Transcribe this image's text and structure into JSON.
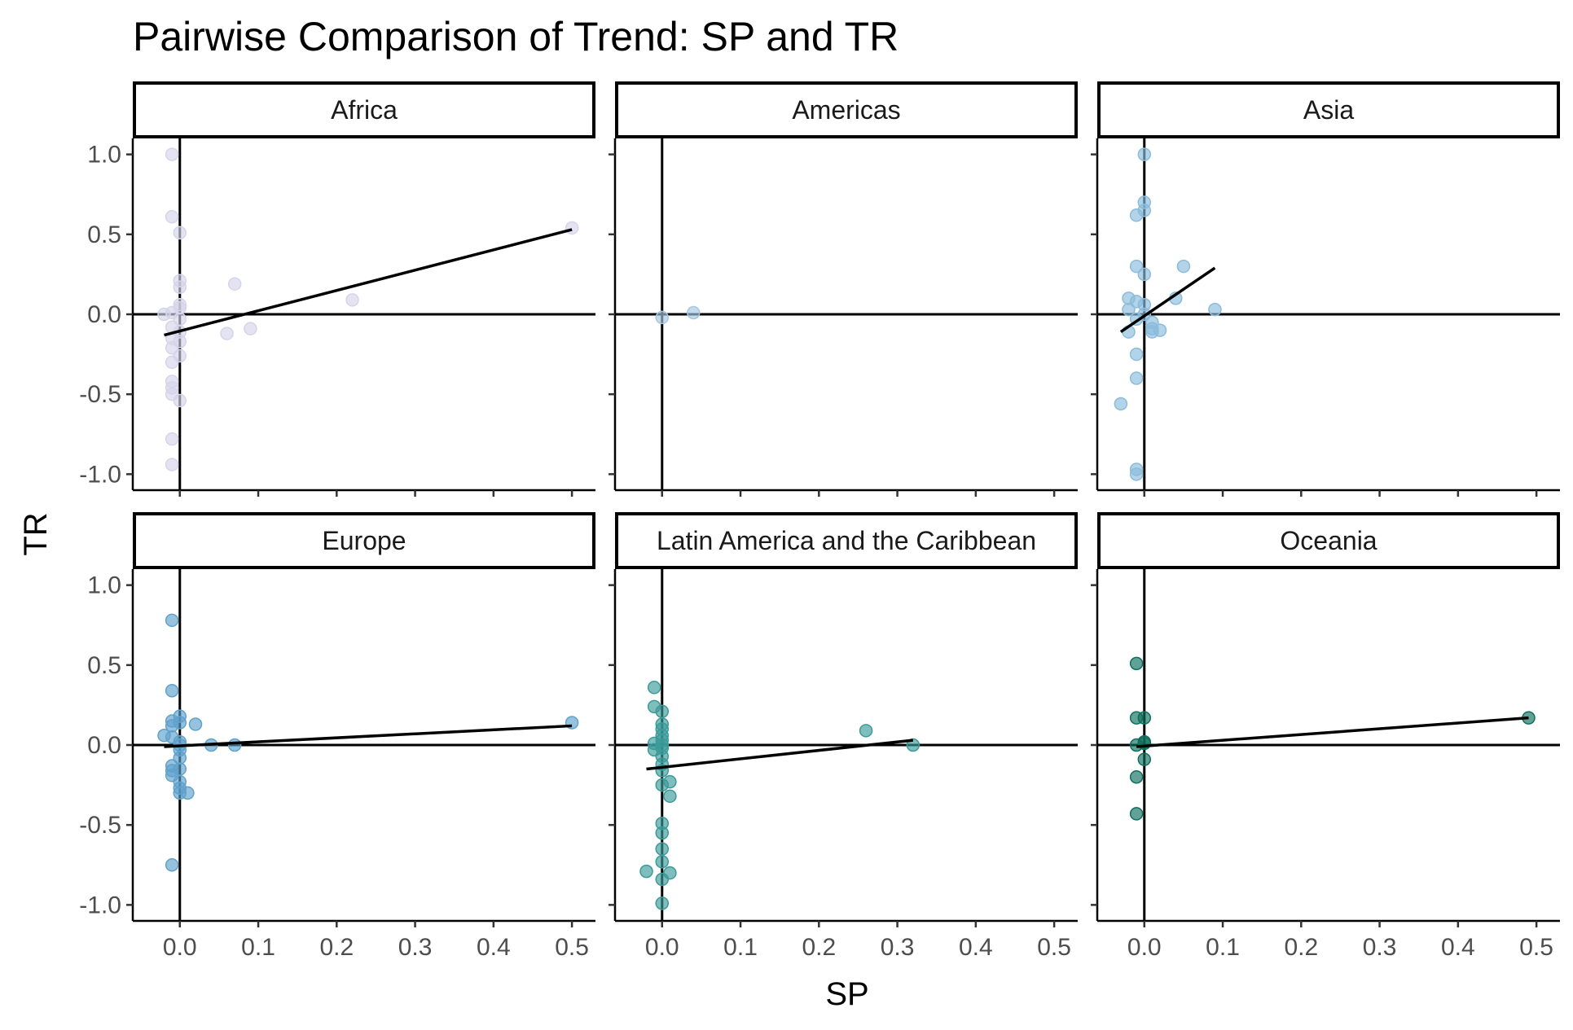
{
  "chart_data": {
    "type": "scatter",
    "title": "Pairwise Comparison of Trend: SP and TR",
    "xlabel": "SP",
    "ylabel": "TR",
    "xlim": [
      -0.06,
      0.53
    ],
    "ylim": [
      -1.1,
      1.1
    ],
    "x_ticks": [
      0.0,
      0.1,
      0.2,
      0.3,
      0.4,
      0.5
    ],
    "x_tick_labels": [
      "0.0",
      "0.1",
      "0.2",
      "0.3",
      "0.4",
      "0.5"
    ],
    "y_ticks": [
      1.0,
      0.5,
      0.0,
      -0.5,
      -1.0
    ],
    "y_tick_labels": [
      "1.0",
      "0.5",
      "0.0",
      "-0.5",
      "-1.0"
    ],
    "grid": false,
    "reference_lines": {
      "x": 0,
      "y": 0
    },
    "panels": [
      {
        "name": "Africa",
        "color": "#d6d4ea",
        "points": [
          [
            -0.01,
            1.0
          ],
          [
            -0.01,
            0.61
          ],
          [
            0.0,
            0.51
          ],
          [
            0.0,
            0.21
          ],
          [
            0.0,
            0.17
          ],
          [
            0.0,
            0.06
          ],
          [
            0.0,
            0.04
          ],
          [
            -0.02,
            0.0
          ],
          [
            -0.01,
            0.01
          ],
          [
            0.0,
            -0.03
          ],
          [
            -0.01,
            -0.08
          ],
          [
            0.0,
            -0.11
          ],
          [
            -0.01,
            -0.15
          ],
          [
            0.0,
            -0.17
          ],
          [
            -0.01,
            -0.21
          ],
          [
            0.0,
            -0.26
          ],
          [
            -0.01,
            -0.3
          ],
          [
            -0.01,
            -0.42
          ],
          [
            -0.01,
            -0.46
          ],
          [
            -0.01,
            -0.5
          ],
          [
            0.0,
            -0.54
          ],
          [
            -0.01,
            -0.78
          ],
          [
            -0.01,
            -0.94
          ],
          [
            0.07,
            0.19
          ],
          [
            0.06,
            -0.12
          ],
          [
            0.09,
            -0.09
          ],
          [
            0.22,
            0.09
          ],
          [
            0.5,
            0.54
          ]
        ],
        "fit": [
          [
            -0.02,
            -0.13
          ],
          [
            0.5,
            0.53
          ]
        ]
      },
      {
        "name": "Americas",
        "color": "#a6c8e2",
        "points": [
          [
            0.0,
            -0.02
          ],
          [
            0.04,
            0.01
          ]
        ],
        "fit": []
      },
      {
        "name": "Asia",
        "color": "#8bbcdc",
        "points": [
          [
            0.0,
            1.0
          ],
          [
            0.0,
            0.7
          ],
          [
            0.0,
            0.65
          ],
          [
            -0.01,
            0.62
          ],
          [
            -0.01,
            0.3
          ],
          [
            0.0,
            0.25
          ],
          [
            0.05,
            0.3
          ],
          [
            0.04,
            0.1
          ],
          [
            0.09,
            0.03
          ],
          [
            -0.02,
            0.1
          ],
          [
            -0.01,
            0.08
          ],
          [
            0.0,
            0.06
          ],
          [
            -0.02,
            0.03
          ],
          [
            0.0,
            0.0
          ],
          [
            -0.01,
            -0.03
          ],
          [
            0.01,
            -0.05
          ],
          [
            0.01,
            -0.09
          ],
          [
            0.01,
            -0.11
          ],
          [
            0.02,
            -0.1
          ],
          [
            -0.02,
            -0.11
          ],
          [
            -0.01,
            -0.25
          ],
          [
            -0.01,
            -0.4
          ],
          [
            -0.03,
            -0.56
          ],
          [
            -0.01,
            -0.97
          ],
          [
            -0.01,
            -1.0
          ]
        ],
        "fit": [
          [
            -0.03,
            -0.11
          ],
          [
            0.09,
            0.29
          ]
        ]
      },
      {
        "name": "Europe",
        "color": "#5fa2cc",
        "points": [
          [
            -0.01,
            0.78
          ],
          [
            -0.01,
            0.34
          ],
          [
            0.0,
            0.18
          ],
          [
            -0.01,
            0.15
          ],
          [
            0.0,
            0.14
          ],
          [
            -0.01,
            0.12
          ],
          [
            0.02,
            0.13
          ],
          [
            -0.02,
            0.06
          ],
          [
            -0.01,
            0.05
          ],
          [
            0.0,
            0.02
          ],
          [
            0.0,
            0.0
          ],
          [
            0.04,
            0.0
          ],
          [
            0.07,
            0.0
          ],
          [
            0.0,
            -0.03
          ],
          [
            0.0,
            -0.08
          ],
          [
            -0.01,
            -0.13
          ],
          [
            -0.01,
            -0.16
          ],
          [
            -0.01,
            -0.19
          ],
          [
            0.0,
            -0.15
          ],
          [
            0.0,
            -0.23
          ],
          [
            0.0,
            -0.27
          ],
          [
            0.0,
            -0.3
          ],
          [
            0.01,
            -0.3
          ],
          [
            -0.01,
            -0.75
          ],
          [
            0.5,
            0.14
          ]
        ],
        "fit": [
          [
            -0.02,
            -0.01
          ],
          [
            0.5,
            0.12
          ]
        ]
      },
      {
        "name": "Latin America and the Caribbean",
        "color": "#3a9b99",
        "points": [
          [
            -0.01,
            0.36
          ],
          [
            -0.01,
            0.24
          ],
          [
            0.0,
            0.21
          ],
          [
            0.0,
            0.13
          ],
          [
            0.0,
            0.1
          ],
          [
            0.0,
            0.06
          ],
          [
            0.0,
            0.03
          ],
          [
            -0.01,
            0.01
          ],
          [
            0.0,
            0.0
          ],
          [
            0.0,
            -0.02
          ],
          [
            -0.01,
            -0.03
          ],
          [
            0.0,
            -0.07
          ],
          [
            0.0,
            -0.12
          ],
          [
            0.0,
            -0.16
          ],
          [
            0.0,
            -0.25
          ],
          [
            0.01,
            -0.23
          ],
          [
            0.01,
            -0.32
          ],
          [
            0.0,
            -0.49
          ],
          [
            0.0,
            -0.55
          ],
          [
            0.0,
            -0.65
          ],
          [
            0.0,
            -0.73
          ],
          [
            -0.02,
            -0.79
          ],
          [
            0.01,
            -0.8
          ],
          [
            0.0,
            -0.84
          ],
          [
            0.0,
            -0.99
          ],
          [
            0.26,
            0.09
          ],
          [
            0.32,
            0.0
          ]
        ],
        "fit": [
          [
            -0.02,
            -0.15
          ],
          [
            0.32,
            0.03
          ]
        ]
      },
      {
        "name": "Oceania",
        "color": "#0e6f5c",
        "points": [
          [
            -0.01,
            0.51
          ],
          [
            -0.01,
            0.17
          ],
          [
            0.0,
            0.17
          ],
          [
            -0.01,
            0.0
          ],
          [
            0.0,
            0.02
          ],
          [
            0.0,
            0.01
          ],
          [
            0.0,
            -0.09
          ],
          [
            -0.01,
            -0.2
          ],
          [
            -0.01,
            -0.43
          ],
          [
            0.49,
            0.17
          ]
        ],
        "fit": [
          [
            -0.01,
            -0.01
          ],
          [
            0.49,
            0.17
          ]
        ]
      }
    ]
  }
}
